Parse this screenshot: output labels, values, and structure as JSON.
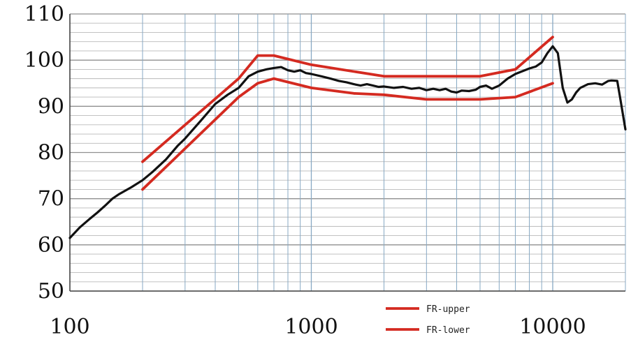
{
  "chart_data": {
    "type": "line",
    "x_scale": "log",
    "xlim": [
      100,
      20000
    ],
    "ylim": [
      50,
      110
    ],
    "x_tick_labels": [
      {
        "value": 100,
        "label": "100"
      },
      {
        "value": 1000,
        "label": "1000"
      },
      {
        "value": 10000,
        "label": "10000"
      }
    ],
    "y_tick_labels": [
      {
        "value": 50,
        "label": "50"
      },
      {
        "value": 60,
        "label": "60"
      },
      {
        "value": 70,
        "label": "70"
      },
      {
        "value": 80,
        "label": "80"
      },
      {
        "value": 90,
        "label": "90"
      },
      {
        "value": 100,
        "label": "100"
      },
      {
        "value": 110,
        "label": "110"
      }
    ],
    "grid": true,
    "legend_placement": "bottom-center",
    "series": [
      {
        "name": "FR-upper",
        "color": "#d42a20",
        "x": [
          200,
          500,
          600,
          700,
          1000,
          2000,
          3000,
          5000,
          7000,
          10000
        ],
        "y": [
          78,
          96,
          101,
          101,
          99,
          96.5,
          96.5,
          96.5,
          98,
          105
        ]
      },
      {
        "name": "FR-lower",
        "color": "#d42a20",
        "x": [
          200,
          500,
          600,
          700,
          1000,
          1500,
          2000,
          3000,
          5000,
          7000,
          10000
        ],
        "y": [
          72,
          92,
          95,
          96,
          94,
          92.8,
          92.5,
          91.5,
          91.5,
          92,
          95
        ]
      },
      {
        "name": "",
        "color": "#111111",
        "x": [
          100,
          110,
          120,
          130,
          140,
          150,
          160,
          180,
          200,
          220,
          250,
          280,
          300,
          350,
          400,
          450,
          500,
          550,
          600,
          650,
          700,
          750,
          800,
          850,
          900,
          950,
          1000,
          1100,
          1200,
          1300,
          1400,
          1500,
          1600,
          1700,
          1800,
          1900,
          2000,
          2200,
          2400,
          2600,
          2800,
          3000,
          3200,
          3400,
          3600,
          3800,
          4000,
          4200,
          4500,
          4800,
          5000,
          5300,
          5600,
          6000,
          6500,
          7000,
          8000,
          8500,
          9000,
          9500,
          10000,
          10500,
          11000,
          11500,
          12000,
          12500,
          13000,
          14000,
          15000,
          16000,
          17000,
          17500,
          18500,
          19000,
          20000
        ],
        "y": [
          61.5,
          63.8,
          65.5,
          67,
          68.5,
          70,
          71,
          72.5,
          74,
          75.8,
          78.5,
          81.5,
          83,
          87,
          90.5,
          92.5,
          94,
          96.5,
          97.5,
          98,
          98.3,
          98.5,
          97.8,
          97.5,
          97.8,
          97.2,
          97,
          96.5,
          96,
          95.5,
          95.2,
          94.8,
          94.5,
          94.8,
          94.5,
          94.2,
          94.3,
          94,
          94.2,
          93.8,
          94,
          93.5,
          93.8,
          93.5,
          93.8,
          93.2,
          93,
          93.4,
          93.3,
          93.6,
          94.2,
          94.5,
          93.8,
          94.5,
          96,
          97,
          98.2,
          98.6,
          99.5,
          101.5,
          103,
          101.5,
          94,
          90.8,
          91.5,
          93,
          94,
          94.8,
          95,
          94.7,
          95.5,
          95.6,
          95.5,
          92,
          85
        ]
      }
    ]
  }
}
